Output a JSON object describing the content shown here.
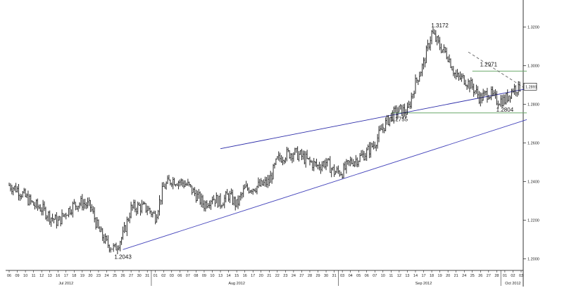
{
  "chart_data": {
    "type": "line",
    "instrument_style": "bar",
    "y_ticks": [
      1.2,
      1.22,
      1.24,
      1.26,
      1.28,
      1.3,
      1.32
    ],
    "y_tick_labels": [
      "1.2000",
      "1.2200",
      "1.2400",
      "1.2600",
      "1.2800",
      "1.3000",
      "1.3200"
    ],
    "ylim": [
      1.194,
      1.331
    ],
    "current_price_label": "1.2891",
    "current_price": 1.2891,
    "x_day_labels": [
      "06",
      "09",
      "10",
      "11",
      "12",
      "13",
      "16",
      "17",
      "18",
      "19",
      "20",
      "23",
      "24",
      "25",
      "26",
      "27",
      "30",
      "31",
      "01",
      "02",
      "03",
      "06",
      "07",
      "08",
      "09",
      "10",
      "13",
      "14",
      "15",
      "16",
      "17",
      "20",
      "21",
      "22",
      "23",
      "24",
      "27",
      "28",
      "29",
      "30",
      "31",
      "03",
      "04",
      "05",
      "06",
      "07",
      "10",
      "11",
      "12",
      "13",
      "14",
      "17",
      "18",
      "19",
      "20",
      "21",
      "24",
      "25",
      "26",
      "27",
      "28",
      "01",
      "02",
      "03"
    ],
    "month_labels": [
      {
        "label": "Jul 2012",
        "at_index": 7
      },
      {
        "label": "Aug 2012",
        "at_index": 28
      },
      {
        "label": "Sep 2012",
        "at_index": 51
      },
      {
        "label": "Oct 2012",
        "at_index": 62
      }
    ],
    "month_separator_indices": [
      18,
      41,
      61
    ],
    "series": [
      {
        "values": [
          1.238,
          1.236,
          1.232,
          1.228,
          1.226,
          1.222,
          1.219,
          1.224,
          1.228,
          1.229,
          1.227,
          1.215,
          1.208,
          1.205,
          1.212,
          1.226,
          1.227,
          1.226,
          1.222,
          1.237,
          1.241,
          1.24,
          1.238,
          1.233,
          1.228,
          1.232,
          1.229,
          1.233,
          1.228,
          1.236,
          1.237,
          1.238,
          1.24,
          1.251,
          1.254,
          1.255,
          1.253,
          1.25,
          1.248,
          1.25,
          1.245,
          1.245,
          1.25,
          1.252,
          1.255,
          1.26,
          1.268,
          1.274,
          1.277,
          1.276,
          1.291,
          1.301,
          1.317,
          1.31,
          1.305,
          1.294,
          1.293,
          1.289,
          1.283,
          1.286,
          1.282,
          1.282,
          1.288,
          1.289
        ]
      }
    ],
    "annotations": [
      {
        "text": "1.2043",
        "x_index": 14,
        "y": 1.2043
      },
      {
        "text": "1.2755",
        "x_index": 48,
        "y": 1.2755
      },
      {
        "text": "1.3172",
        "x_index": 53,
        "y": 1.3172
      },
      {
        "text": "1.2971",
        "x_index": 59,
        "y": 1.2971
      },
      {
        "text": "1.2804",
        "x_index": 61,
        "y": 1.2804
      }
    ],
    "trendlines": [
      {
        "style": "solid",
        "color": "#2a2aa8",
        "from": [
          26,
          1.257
        ],
        "to": [
          63.7,
          1.288
        ]
      },
      {
        "style": "solid",
        "color": "#4444bb",
        "from": [
          14,
          1.2048
        ],
        "to": [
          63.7,
          1.272
        ]
      },
      {
        "style": "dashed",
        "color": "#555555",
        "from": [
          56.5,
          1.307
        ],
        "to": [
          63.7,
          1.2876
        ]
      }
    ],
    "horizontal_lines": [
      {
        "y": 1.2971,
        "color": "#6aa86a",
        "from_index": 57,
        "to_index": 63.7
      },
      {
        "y": 1.2755,
        "color": "#6aa86a",
        "from_index": 47,
        "to_index": 63.7
      }
    ],
    "grid": false
  }
}
